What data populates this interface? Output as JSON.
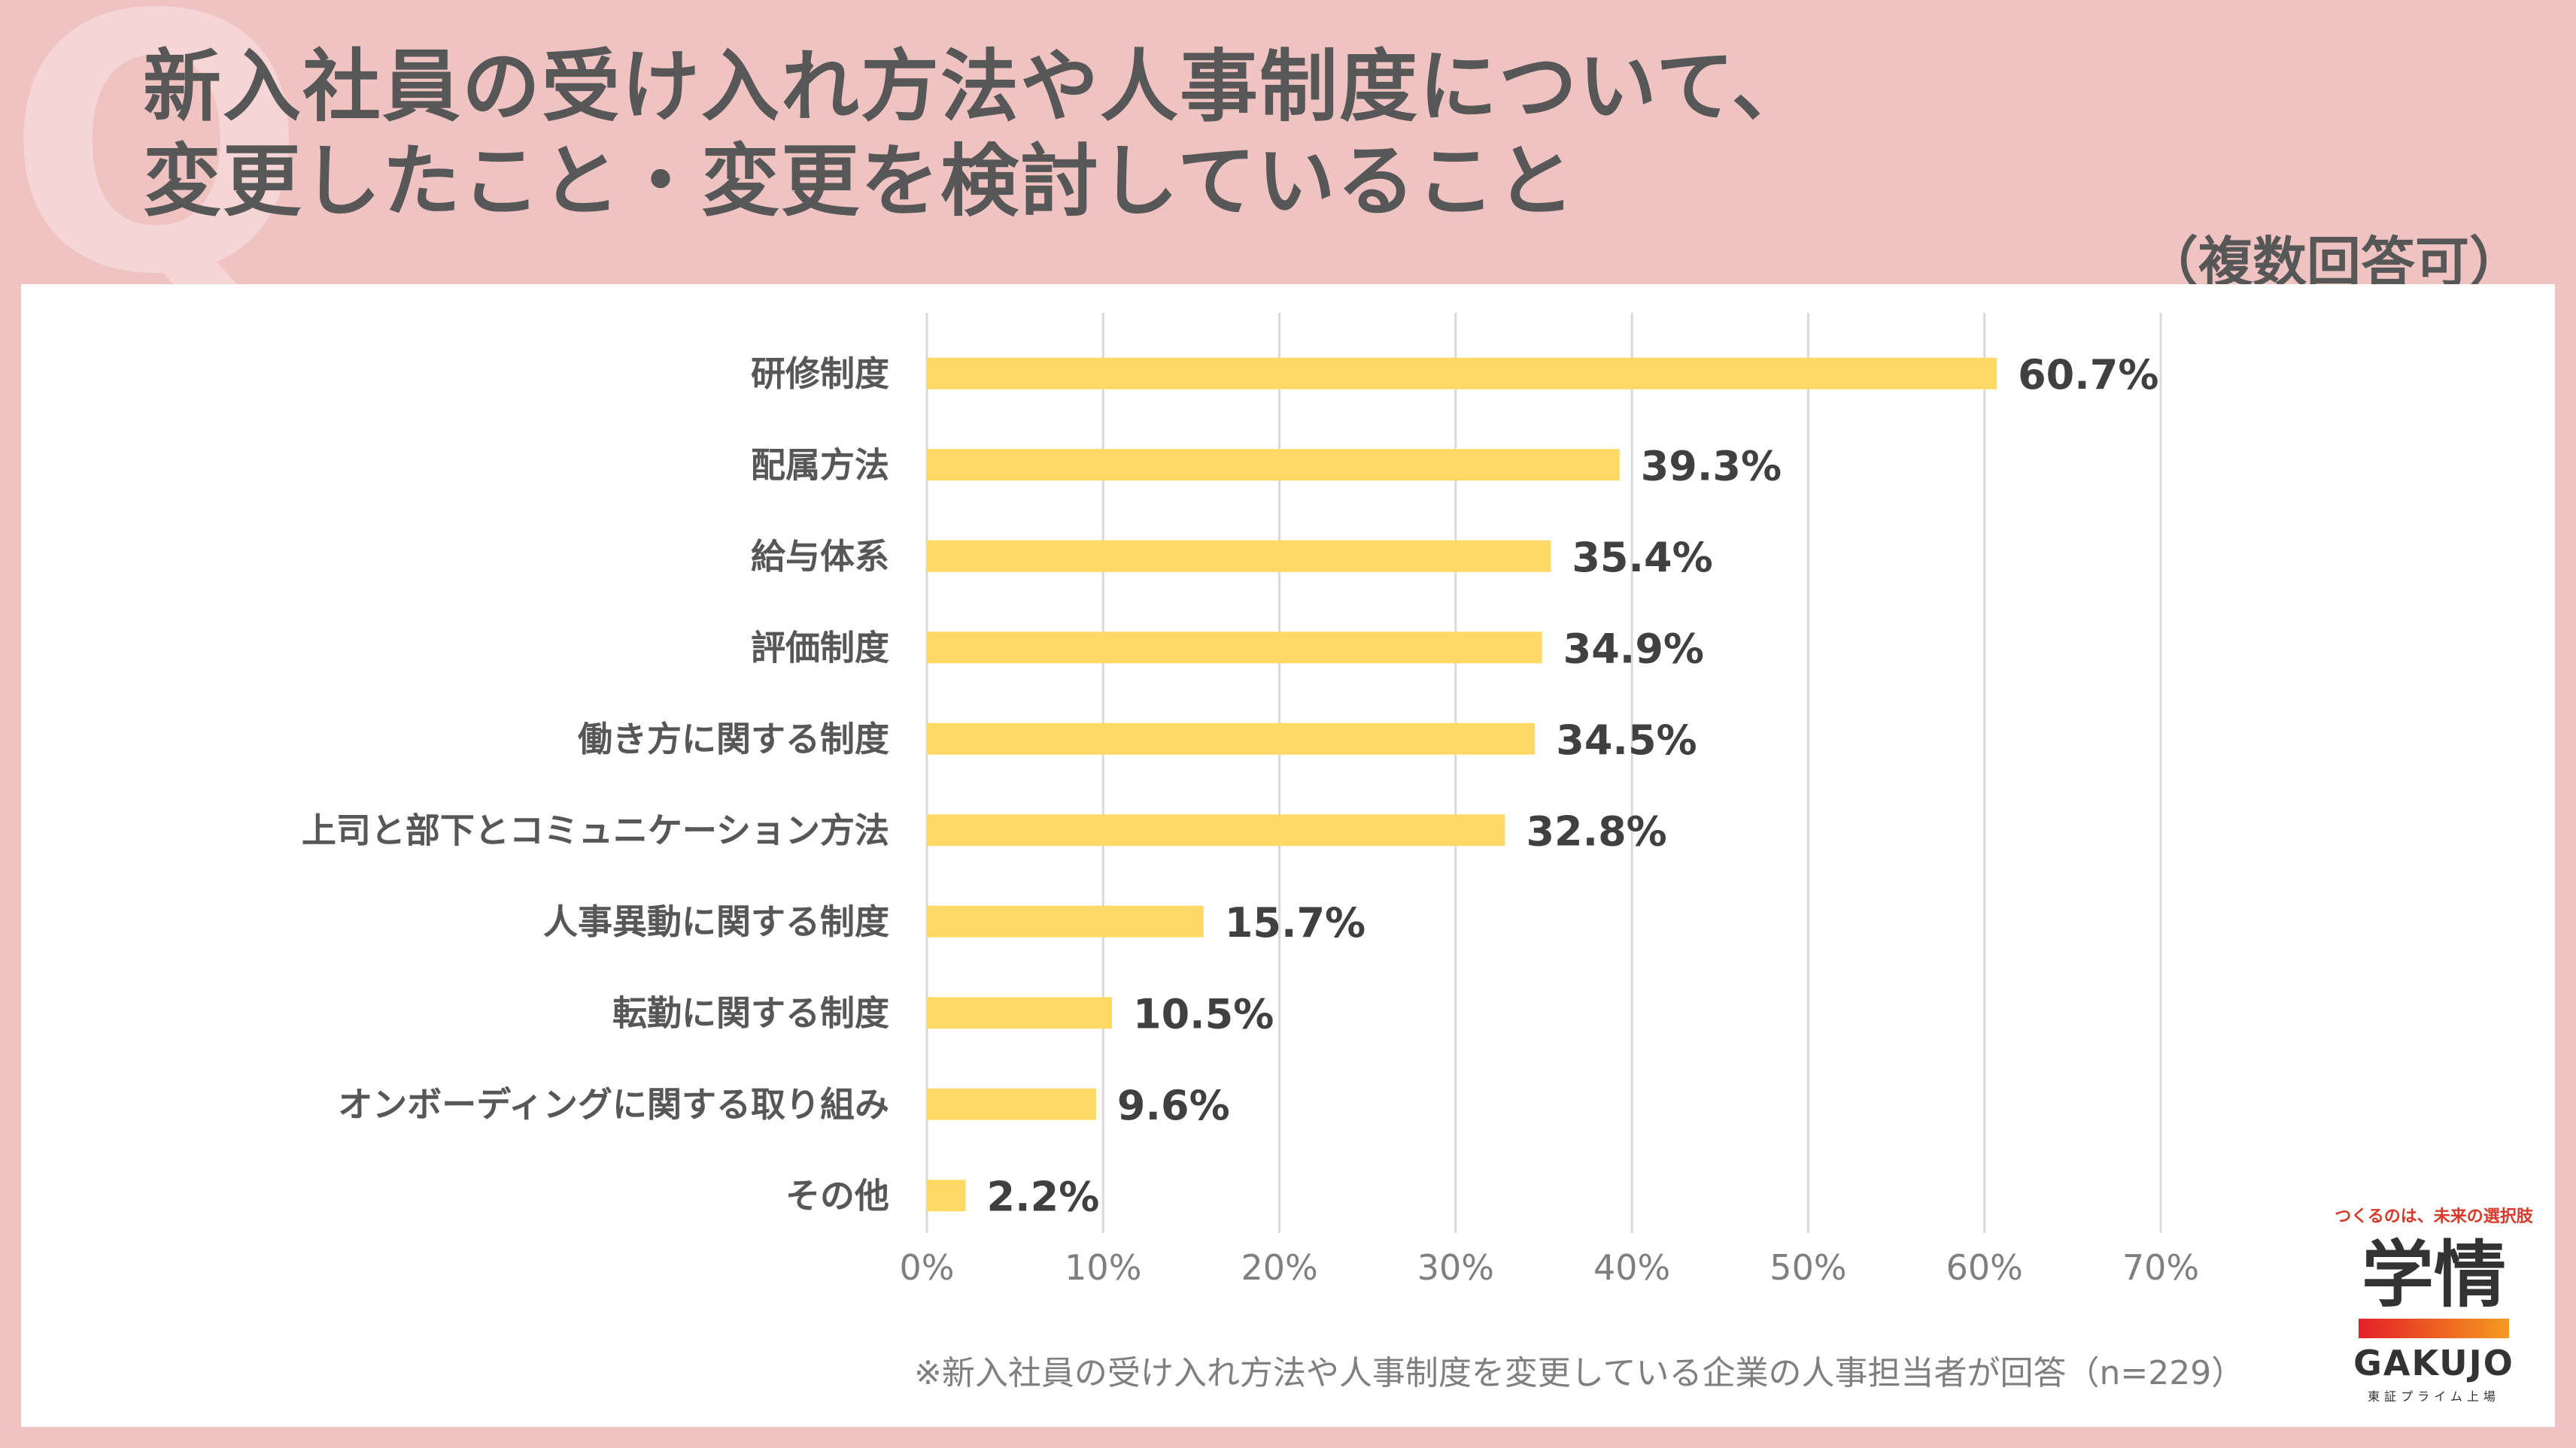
{
  "header": {
    "watermark": "Q",
    "title_line1": "新入社員の受け入れ方法や人事制度について、",
    "title_line2": "変更したこと・変更を検討していること",
    "note": "（複数回答可）"
  },
  "footnote": "※新入社員の受け入れ方法や人事制度を変更している企業の人事担当者が回答（n=229）",
  "logo": {
    "tagline": "つくるのは、未来の選択肢",
    "main": "学情",
    "en": "GAKUJO",
    "sub": "東証プライム上場"
  },
  "colors": {
    "bar": "#ffd966",
    "background": "#f0c3c3",
    "panel": "#ffffff",
    "text": "#575757"
  },
  "chart_data": {
    "type": "bar",
    "orientation": "horizontal",
    "categories": [
      "研修制度",
      "配属方法",
      "給与体系",
      "評価制度",
      "働き方に関する制度",
      "上司と部下とコミュニケーション方法",
      "人事異動に関する制度",
      "転勤に関する制度",
      "オンボーディングに関する取り組み",
      "その他"
    ],
    "values": [
      60.7,
      39.3,
      35.4,
      34.9,
      34.5,
      32.8,
      15.7,
      10.5,
      9.6,
      2.2
    ],
    "value_labels": [
      "60.7%",
      "39.3%",
      "35.4%",
      "34.9%",
      "34.5%",
      "32.8%",
      "15.7%",
      "10.5%",
      "9.6%",
      "2.2%"
    ],
    "xlim": [
      0,
      70
    ],
    "ticks": [
      0,
      10,
      20,
      30,
      40,
      50,
      60,
      70
    ],
    "tick_labels": [
      "0%",
      "10%",
      "20%",
      "30%",
      "40%",
      "50%",
      "60%",
      "70%"
    ],
    "grid": true,
    "unit": "%"
  }
}
